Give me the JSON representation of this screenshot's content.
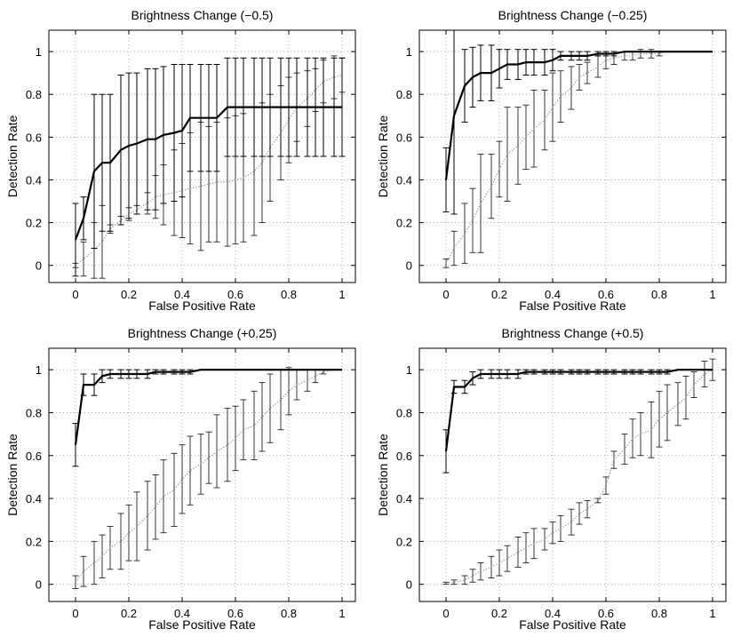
{
  "chart_data": [
    {
      "type": "line",
      "title": "Brightness Change (−0.5)",
      "xlabel": "False Positive Rate",
      "ylabel": "Detection Rate",
      "xlim": [
        -0.1,
        1.05
      ],
      "ylim": [
        -0.08,
        1.1
      ],
      "xticks": [
        "0",
        "0.2",
        "0.4",
        "0.6",
        "0.8",
        "1"
      ],
      "yticks": [
        "0",
        "0.2",
        "0.4",
        "0.6",
        "0.8",
        "1"
      ],
      "grid": true,
      "series": [
        {
          "style": "solid",
          "x": [
            0,
            0.03,
            0.07,
            0.1,
            0.13,
            0.17,
            0.2,
            0.23,
            0.27,
            0.3,
            0.33,
            0.37,
            0.4,
            0.43,
            0.47,
            0.5,
            0.53,
            0.57,
            0.6,
            0.63,
            0.67,
            0.7,
            0.73,
            0.77,
            0.8,
            0.83,
            0.87,
            0.9,
            0.93,
            0.97,
            1
          ],
          "y": [
            0.12,
            0.22,
            0.44,
            0.48,
            0.48,
            0.54,
            0.56,
            0.57,
            0.59,
            0.59,
            0.61,
            0.62,
            0.63,
            0.69,
            0.69,
            0.69,
            0.69,
            0.74,
            0.74,
            0.74,
            0.74,
            0.74,
            0.74,
            0.74,
            0.74,
            0.74,
            0.74,
            0.74,
            0.74,
            0.74,
            0.74
          ],
          "err": [
            0.17,
            0.1,
            0.36,
            0.32,
            0.32,
            0.35,
            0.34,
            0.33,
            0.33,
            0.33,
            0.32,
            0.32,
            0.31,
            0.25,
            0.25,
            0.25,
            0.25,
            0.23,
            0.23,
            0.23,
            0.23,
            0.23,
            0.23,
            0.23,
            0.23,
            0.23,
            0.23,
            0.23,
            0.23,
            0.23,
            0.23
          ]
        },
        {
          "style": "dotted",
          "x": [
            0,
            0.03,
            0.07,
            0.1,
            0.13,
            0.17,
            0.2,
            0.23,
            0.27,
            0.3,
            0.33,
            0.37,
            0.4,
            0.43,
            0.47,
            0.5,
            0.53,
            0.57,
            0.6,
            0.63,
            0.67,
            0.7,
            0.73,
            0.77,
            0.8,
            0.83,
            0.87,
            0.9,
            0.93,
            0.97,
            1
          ],
          "y": [
            0,
            0.03,
            0.07,
            0.11,
            0.17,
            0.21,
            0.24,
            0.26,
            0.29,
            0.32,
            0.33,
            0.34,
            0.35,
            0.36,
            0.37,
            0.38,
            0.39,
            0.39,
            0.4,
            0.41,
            0.44,
            0.48,
            0.55,
            0.62,
            0.68,
            0.74,
            0.78,
            0.82,
            0.86,
            0.88,
            0.89
          ],
          "err": [
            0.01,
            0.08,
            0.13,
            0.17,
            0.02,
            0.02,
            0.03,
            0.02,
            0.05,
            0.1,
            0.14,
            0.2,
            0.22,
            0.26,
            0.3,
            0.27,
            0.28,
            0.3,
            0.3,
            0.3,
            0.3,
            0.28,
            0.25,
            0.22,
            0.2,
            0.16,
            0.13,
            0.1,
            0.1,
            0.1,
            0.08
          ]
        }
      ]
    },
    {
      "type": "line",
      "title": "Brightness Change (−0.25)",
      "xlabel": "False Positive Rate",
      "ylabel": "Detection Rate",
      "xlim": [
        -0.1,
        1.05
      ],
      "ylim": [
        -0.08,
        1.1
      ],
      "xticks": [
        "0",
        "0.2",
        "0.4",
        "0.6",
        "0.8",
        "1"
      ],
      "yticks": [
        "0",
        "0.2",
        "0.4",
        "0.6",
        "0.8",
        "1"
      ],
      "grid": true,
      "series": [
        {
          "style": "solid",
          "x": [
            0,
            0.03,
            0.07,
            0.1,
            0.13,
            0.17,
            0.2,
            0.23,
            0.27,
            0.3,
            0.33,
            0.37,
            0.4,
            0.43,
            0.47,
            0.5,
            0.53,
            0.57,
            0.6,
            0.63,
            0.67,
            0.7,
            0.73,
            0.77,
            0.8,
            0.83,
            0.87,
            0.9,
            0.93,
            0.97,
            1
          ],
          "y": [
            0.4,
            0.7,
            0.84,
            0.88,
            0.9,
            0.9,
            0.92,
            0.94,
            0.94,
            0.95,
            0.95,
            0.95,
            0.96,
            0.98,
            0.98,
            0.98,
            0.98,
            0.99,
            0.99,
            0.99,
            1,
            1,
            1,
            1,
            1,
            1,
            1,
            1,
            1,
            1,
            1
          ],
          "err": [
            0.15,
            0.46,
            0.17,
            0.14,
            0.13,
            0.13,
            0.09,
            0.07,
            0.07,
            0.06,
            0.06,
            0.06,
            0.05,
            0.02,
            0.02,
            0.02,
            0.02,
            0.01,
            0.01,
            0.01,
            0,
            0,
            0,
            0,
            0,
            0,
            0,
            0,
            0,
            0,
            0
          ]
        },
        {
          "style": "dotted",
          "x": [
            0,
            0.03,
            0.07,
            0.1,
            0.13,
            0.17,
            0.2,
            0.23,
            0.27,
            0.3,
            0.33,
            0.37,
            0.4,
            0.43,
            0.47,
            0.5,
            0.53,
            0.57,
            0.6,
            0.63,
            0.67,
            0.7,
            0.73,
            0.77,
            0.8,
            0.83,
            0.87,
            0.9,
            0.93,
            0.97,
            1
          ],
          "y": [
            0.01,
            0.08,
            0.15,
            0.21,
            0.29,
            0.37,
            0.45,
            0.52,
            0.56,
            0.6,
            0.64,
            0.68,
            0.74,
            0.79,
            0.83,
            0.88,
            0.9,
            0.93,
            0.96,
            0.97,
            0.98,
            0.98,
            0.99,
            0.99,
            0.99,
            1,
            1,
            1,
            1,
            1,
            1
          ],
          "err": [
            0.02,
            0.08,
            0.14,
            0.15,
            0.23,
            0.15,
            0.13,
            0.22,
            0.18,
            0.15,
            0.18,
            0.14,
            0.16,
            0.12,
            0.1,
            0.06,
            0.05,
            0.05,
            0.04,
            0.03,
            0.02,
            0.02,
            0.02,
            0.02,
            0.01,
            0,
            0,
            0,
            0,
            0,
            0
          ]
        }
      ]
    },
    {
      "type": "line",
      "title": "Brightness Change (+0.25)",
      "xlabel": "False Positive Rate",
      "ylabel": "Detection Rate",
      "xlim": [
        -0.1,
        1.05
      ],
      "ylim": [
        -0.08,
        1.1
      ],
      "xticks": [
        "0",
        "0.2",
        "0.4",
        "0.6",
        "0.8",
        "1"
      ],
      "yticks": [
        "0",
        "0.2",
        "0.4",
        "0.6",
        "0.8",
        "1"
      ],
      "grid": true,
      "series": [
        {
          "style": "solid",
          "x": [
            0,
            0.03,
            0.07,
            0.1,
            0.13,
            0.17,
            0.2,
            0.23,
            0.27,
            0.3,
            0.33,
            0.37,
            0.4,
            0.43,
            0.47,
            0.5,
            0.53,
            0.57,
            0.6,
            0.63,
            0.67,
            0.7,
            0.73,
            0.77,
            0.8,
            0.83,
            0.87,
            0.9,
            0.93,
            0.97,
            1
          ],
          "y": [
            0.65,
            0.93,
            0.93,
            0.97,
            0.98,
            0.98,
            0.98,
            0.98,
            0.98,
            0.99,
            0.99,
            0.99,
            0.99,
            0.99,
            1,
            1,
            1,
            1,
            1,
            1,
            1,
            1,
            1,
            1,
            1,
            1,
            1,
            1,
            1,
            1,
            1
          ],
          "err": [
            0.1,
            0.05,
            0.05,
            0.03,
            0.02,
            0.02,
            0.02,
            0.02,
            0.02,
            0.01,
            0.01,
            0.01,
            0.01,
            0.01,
            0,
            0,
            0,
            0,
            0,
            0,
            0,
            0,
            0,
            0,
            0,
            0,
            0,
            0,
            0,
            0,
            0
          ]
        },
        {
          "style": "dotted",
          "x": [
            0,
            0.03,
            0.07,
            0.1,
            0.13,
            0.17,
            0.2,
            0.23,
            0.27,
            0.3,
            0.33,
            0.37,
            0.4,
            0.43,
            0.47,
            0.5,
            0.53,
            0.57,
            0.6,
            0.63,
            0.67,
            0.7,
            0.73,
            0.77,
            0.8,
            0.83,
            0.87,
            0.9,
            0.93,
            0.97,
            1
          ],
          "y": [
            0.01,
            0.06,
            0.1,
            0.13,
            0.17,
            0.2,
            0.24,
            0.27,
            0.32,
            0.36,
            0.41,
            0.44,
            0.49,
            0.53,
            0.56,
            0.59,
            0.62,
            0.65,
            0.68,
            0.72,
            0.74,
            0.78,
            0.82,
            0.86,
            0.9,
            0.93,
            0.95,
            0.97,
            0.99,
            1,
            1
          ],
          "err": [
            0.03,
            0.07,
            0.1,
            0.1,
            0.1,
            0.13,
            0.13,
            0.16,
            0.16,
            0.15,
            0.17,
            0.17,
            0.16,
            0.16,
            0.14,
            0.12,
            0.17,
            0.17,
            0.15,
            0.14,
            0.16,
            0.16,
            0.16,
            0.14,
            0.11,
            0.07,
            0.05,
            0.03,
            0.01,
            0,
            0
          ]
        }
      ]
    },
    {
      "type": "line",
      "title": "Brightness Change (+0.5)",
      "xlabel": "False Positive Rate",
      "ylabel": "Detection Rate",
      "xlim": [
        -0.1,
        1.05
      ],
      "ylim": [
        -0.08,
        1.1
      ],
      "xticks": [
        "0",
        "0.2",
        "0.4",
        "0.6",
        "0.8",
        "1"
      ],
      "yticks": [
        "0",
        "0.2",
        "0.4",
        "0.6",
        "0.8",
        "1"
      ],
      "grid": true,
      "series": [
        {
          "style": "solid",
          "x": [
            0,
            0.03,
            0.07,
            0.1,
            0.13,
            0.17,
            0.2,
            0.23,
            0.27,
            0.3,
            0.33,
            0.37,
            0.4,
            0.43,
            0.47,
            0.5,
            0.53,
            0.57,
            0.6,
            0.63,
            0.67,
            0.7,
            0.73,
            0.77,
            0.8,
            0.83,
            0.87,
            0.9,
            0.93,
            0.97,
            1
          ],
          "y": [
            0.62,
            0.92,
            0.92,
            0.96,
            0.98,
            0.98,
            0.98,
            0.98,
            0.98,
            0.99,
            0.99,
            0.99,
            0.99,
            0.99,
            0.99,
            0.99,
            0.99,
            0.99,
            0.99,
            0.99,
            0.99,
            0.99,
            0.99,
            0.99,
            0.99,
            0.99,
            1,
            1,
            1,
            1,
            1
          ],
          "err": [
            0.1,
            0.03,
            0.03,
            0.03,
            0.02,
            0.02,
            0.02,
            0.02,
            0.02,
            0.01,
            0.01,
            0.01,
            0.01,
            0.01,
            0.01,
            0.01,
            0.01,
            0.01,
            0.01,
            0.01,
            0.01,
            0.01,
            0.01,
            0.01,
            0.01,
            0.01,
            0,
            0,
            0,
            0,
            0
          ]
        },
        {
          "style": "dotted",
          "x": [
            0,
            0.03,
            0.07,
            0.1,
            0.13,
            0.17,
            0.2,
            0.23,
            0.27,
            0.3,
            0.33,
            0.37,
            0.4,
            0.43,
            0.47,
            0.5,
            0.53,
            0.57,
            0.6,
            0.63,
            0.67,
            0.7,
            0.73,
            0.77,
            0.8,
            0.83,
            0.87,
            0.9,
            0.93,
            0.97,
            1
          ],
          "y": [
            0.005,
            0.01,
            0.02,
            0.04,
            0.06,
            0.08,
            0.1,
            0.12,
            0.15,
            0.17,
            0.19,
            0.21,
            0.24,
            0.26,
            0.29,
            0.33,
            0.35,
            0.39,
            0.46,
            0.58,
            0.63,
            0.68,
            0.7,
            0.72,
            0.77,
            0.8,
            0.84,
            0.87,
            0.93,
            0.98,
            1
          ],
          "err": [
            0.005,
            0.01,
            0.02,
            0.03,
            0.04,
            0.05,
            0.06,
            0.06,
            0.07,
            0.07,
            0.07,
            0.05,
            0.05,
            0.06,
            0.06,
            0.05,
            0.04,
            0.01,
            0.04,
            0.04,
            0.07,
            0.09,
            0.1,
            0.13,
            0.13,
            0.13,
            0.1,
            0.1,
            0.06,
            0.06,
            0.05
          ]
        }
      ]
    }
  ]
}
